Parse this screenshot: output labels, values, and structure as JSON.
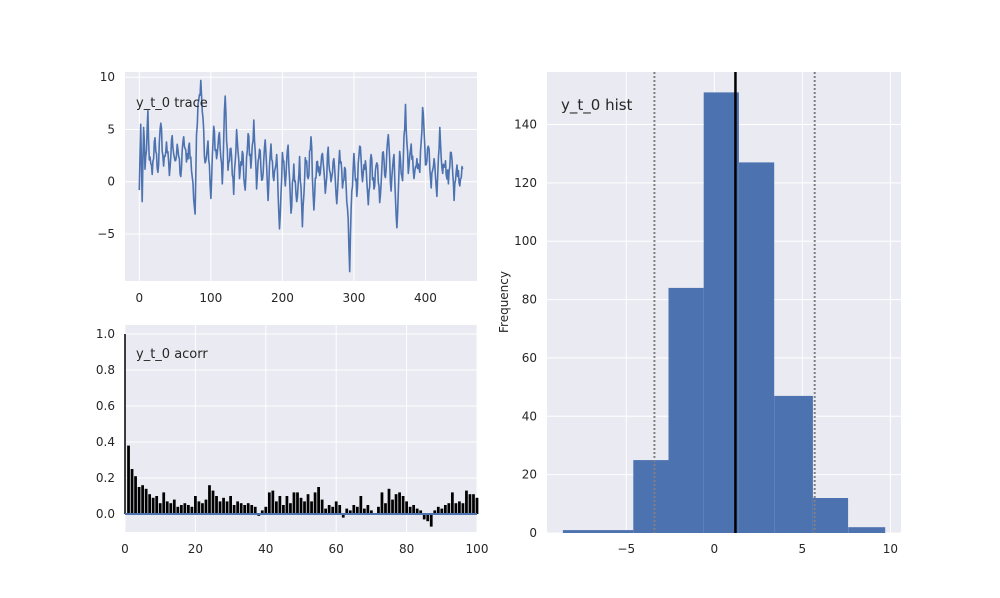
{
  "chart_data": [
    {
      "type": "line",
      "label": "y_t_0 trace",
      "xlim": [
        -20,
        472
      ],
      "ylim": [
        -9.5,
        10.5
      ],
      "xticks": [
        0,
        100,
        200,
        300,
        400
      ],
      "yticks": [
        -5,
        0,
        5,
        10
      ],
      "tick_labels_x": [
        "0",
        "100",
        "200",
        "300",
        "400"
      ],
      "tick_labels_y": [
        "−5",
        "0",
        "5",
        "10"
      ],
      "series_color": "#4c72b0",
      "anchors": [
        [
          0,
          -0.8
        ],
        [
          2,
          5.5
        ],
        [
          4,
          -1.9
        ],
        [
          6,
          5.2
        ],
        [
          8,
          1.2
        ],
        [
          10,
          3.0
        ],
        [
          12,
          6.8
        ],
        [
          14,
          2.1
        ],
        [
          18,
          0.7
        ],
        [
          22,
          4.2
        ],
        [
          26,
          0.9
        ],
        [
          30,
          5.6
        ],
        [
          34,
          1.5
        ],
        [
          38,
          3.8
        ],
        [
          42,
          0.6
        ],
        [
          46,
          4.4
        ],
        [
          50,
          2.0
        ],
        [
          54,
          3.1
        ],
        [
          58,
          0.5
        ],
        [
          62,
          4.3
        ],
        [
          66,
          1.9
        ],
        [
          70,
          3.7
        ],
        [
          74,
          0.4
        ],
        [
          78,
          -3.1
        ],
        [
          80,
          4.5
        ],
        [
          83,
          7.8
        ],
        [
          86,
          9.7
        ],
        [
          89,
          6.1
        ],
        [
          92,
          1.8
        ],
        [
          96,
          3.9
        ],
        [
          100,
          -1.6
        ],
        [
          104,
          5.3
        ],
        [
          108,
          2.2
        ],
        [
          112,
          4.7
        ],
        [
          116,
          -0.2
        ],
        [
          120,
          8.2
        ],
        [
          124,
          1.1
        ],
        [
          128,
          3.2
        ],
        [
          132,
          -1.2
        ],
        [
          136,
          5.0
        ],
        [
          140,
          0.3
        ],
        [
          144,
          2.9
        ],
        [
          148,
          -0.8
        ],
        [
          152,
          4.6
        ],
        [
          156,
          1.3
        ],
        [
          160,
          5.9
        ],
        [
          164,
          -0.7
        ],
        [
          168,
          3.1
        ],
        [
          172,
          0.2
        ],
        [
          176,
          4.0
        ],
        [
          180,
          -1.8
        ],
        [
          184,
          3.6
        ],
        [
          188,
          0.1
        ],
        [
          192,
          2.6
        ],
        [
          196,
          -4.5
        ],
        [
          200,
          2.8
        ],
        [
          204,
          -0.4
        ],
        [
          208,
          3.5
        ],
        [
          212,
          -3.0
        ],
        [
          216,
          1.7
        ],
        [
          220,
          -1.9
        ],
        [
          224,
          2.4
        ],
        [
          228,
          -4.3
        ],
        [
          232,
          2.3
        ],
        [
          236,
          0.3
        ],
        [
          240,
          4.3
        ],
        [
          244,
          -2.7
        ],
        [
          248,
          1.9
        ],
        [
          252,
          0.6
        ],
        [
          256,
          2.7
        ],
        [
          260,
          -1.1
        ],
        [
          264,
          3.3
        ],
        [
          268,
          0.0
        ],
        [
          272,
          2.2
        ],
        [
          276,
          -2.1
        ],
        [
          280,
          3.0
        ],
        [
          284,
          -0.6
        ],
        [
          288,
          1.2
        ],
        [
          292,
          -3.6
        ],
        [
          294,
          -8.6
        ],
        [
          297,
          -0.9
        ],
        [
          300,
          2.7
        ],
        [
          304,
          -1.4
        ],
        [
          308,
          3.4
        ],
        [
          312,
          0.0
        ],
        [
          316,
          2.0
        ],
        [
          320,
          -2.2
        ],
        [
          324,
          2.6
        ],
        [
          328,
          -0.7
        ],
        [
          332,
          1.8
        ],
        [
          336,
          -2.0
        ],
        [
          340,
          2.8
        ],
        [
          344,
          0.4
        ],
        [
          348,
          4.5
        ],
        [
          352,
          -0.9
        ],
        [
          356,
          2.6
        ],
        [
          360,
          -4.4
        ],
        [
          364,
          2.9
        ],
        [
          368,
          0.1
        ],
        [
          372,
          7.4
        ],
        [
          376,
          0.8
        ],
        [
          380,
          3.6
        ],
        [
          384,
          0.3
        ],
        [
          388,
          2.2
        ],
        [
          392,
          0.9
        ],
        [
          396,
          7.1
        ],
        [
          400,
          1.6
        ],
        [
          404,
          3.4
        ],
        [
          408,
          -0.6
        ],
        [
          412,
          2.2
        ],
        [
          416,
          -1.4
        ],
        [
          420,
          5.2
        ],
        [
          424,
          0.8
        ],
        [
          428,
          2.0
        ],
        [
          432,
          -0.2
        ],
        [
          436,
          2.8
        ],
        [
          440,
          -1.8
        ],
        [
          444,
          1.6
        ],
        [
          448,
          -0.4
        ],
        [
          452,
          1.2
        ]
      ]
    },
    {
      "type": "bar",
      "label": "y_t_0 acorr",
      "xlim": [
        0,
        100
      ],
      "ylim": [
        -0.1,
        1.05
      ],
      "xticks": [
        0,
        20,
        40,
        60,
        80,
        100
      ],
      "yticks": [
        0.0,
        0.2,
        0.4,
        0.6,
        0.8,
        1.0
      ],
      "tick_labels_x": [
        "0",
        "20",
        "40",
        "60",
        "80",
        "100"
      ],
      "tick_labels_y": [
        "0.0",
        "0.2",
        "0.4",
        "0.6",
        "0.8",
        "1.0"
      ],
      "bar_color": "#000000",
      "baseline_color": "#4c72b0",
      "lags": [
        0,
        1,
        2,
        3,
        4,
        5,
        6,
        7,
        8,
        9,
        10,
        11,
        12,
        13,
        14,
        15,
        16,
        17,
        18,
        19,
        20,
        21,
        22,
        23,
        24,
        25,
        26,
        27,
        28,
        29,
        30,
        31,
        32,
        33,
        34,
        35,
        36,
        37,
        38,
        39,
        40,
        41,
        42,
        43,
        44,
        45,
        46,
        47,
        48,
        49,
        50,
        51,
        52,
        53,
        54,
        55,
        56,
        57,
        58,
        59,
        60,
        61,
        62,
        63,
        64,
        65,
        66,
        67,
        68,
        69,
        70,
        71,
        72,
        73,
        74,
        75,
        76,
        77,
        78,
        79,
        80,
        81,
        82,
        83,
        84,
        85,
        86,
        87,
        88,
        89,
        90,
        91,
        92,
        93,
        94,
        95,
        96,
        97,
        98,
        99,
        100
      ],
      "values": [
        1.0,
        0.38,
        0.25,
        0.21,
        0.15,
        0.16,
        0.14,
        0.11,
        0.09,
        0.1,
        0.06,
        0.12,
        0.07,
        0.06,
        0.08,
        0.04,
        0.05,
        0.06,
        0.05,
        0.04,
        0.1,
        0.07,
        0.06,
        0.08,
        0.16,
        0.13,
        0.1,
        0.07,
        0.09,
        0.07,
        0.1,
        0.05,
        0.07,
        0.06,
        0.05,
        0.06,
        0.05,
        0.04,
        -0.01,
        0.02,
        0.04,
        0.12,
        0.13,
        0.07,
        0.1,
        0.05,
        0.1,
        0.06,
        0.12,
        0.12,
        0.09,
        0.07,
        0.11,
        0.07,
        0.12,
        0.15,
        0.08,
        0.03,
        0.05,
        0.04,
        0.07,
        0.05,
        -0.02,
        0.03,
        0.02,
        0.05,
        0.04,
        0.1,
        0.03,
        0.05,
        0.02,
        0.0,
        0.04,
        0.12,
        0.06,
        0.14,
        0.08,
        0.11,
        0.12,
        0.1,
        0.07,
        0.04,
        0.05,
        0.03,
        0.02,
        -0.03,
        -0.04,
        -0.07,
        0.02,
        0.04,
        0.03,
        0.05,
        0.06,
        0.12,
        0.06,
        0.07,
        0.06,
        0.13,
        0.11,
        0.11,
        0.09
      ]
    },
    {
      "type": "bar",
      "label": "y_t_0 hist",
      "ylabel": "Frequency",
      "xlim": [
        -9.5,
        10.6
      ],
      "ylim": [
        0,
        158
      ],
      "xticks": [
        -5,
        0,
        5,
        10
      ],
      "yticks": [
        0,
        20,
        40,
        60,
        80,
        100,
        120,
        140
      ],
      "tick_labels_x": [
        "−5",
        "0",
        "5",
        "10"
      ],
      "tick_labels_y": [
        "0",
        "20",
        "40",
        "60",
        "80",
        "100",
        "120",
        "140"
      ],
      "bar_color": "#4c72b0",
      "bins": [
        {
          "x0": -8.6,
          "x1": -4.6,
          "count": 1
        },
        {
          "x0": -4.6,
          "x1": -2.6,
          "count": 25
        },
        {
          "x0": -2.6,
          "x1": -0.6,
          "count": 84
        },
        {
          "x0": -0.6,
          "x1": 1.4,
          "count": 151
        },
        {
          "x0": 1.4,
          "x1": 3.4,
          "count": 127
        },
        {
          "x0": 3.4,
          "x1": 5.6,
          "count": 47
        },
        {
          "x0": 5.6,
          "x1": 7.6,
          "count": 12
        },
        {
          "x0": 7.6,
          "x1": 9.7,
          "count": 2
        }
      ],
      "mean_line": 1.2,
      "interval_lines": [
        -3.4,
        5.7
      ],
      "mean_line_color": "#000000",
      "interval_line_color": "#808080"
    }
  ]
}
